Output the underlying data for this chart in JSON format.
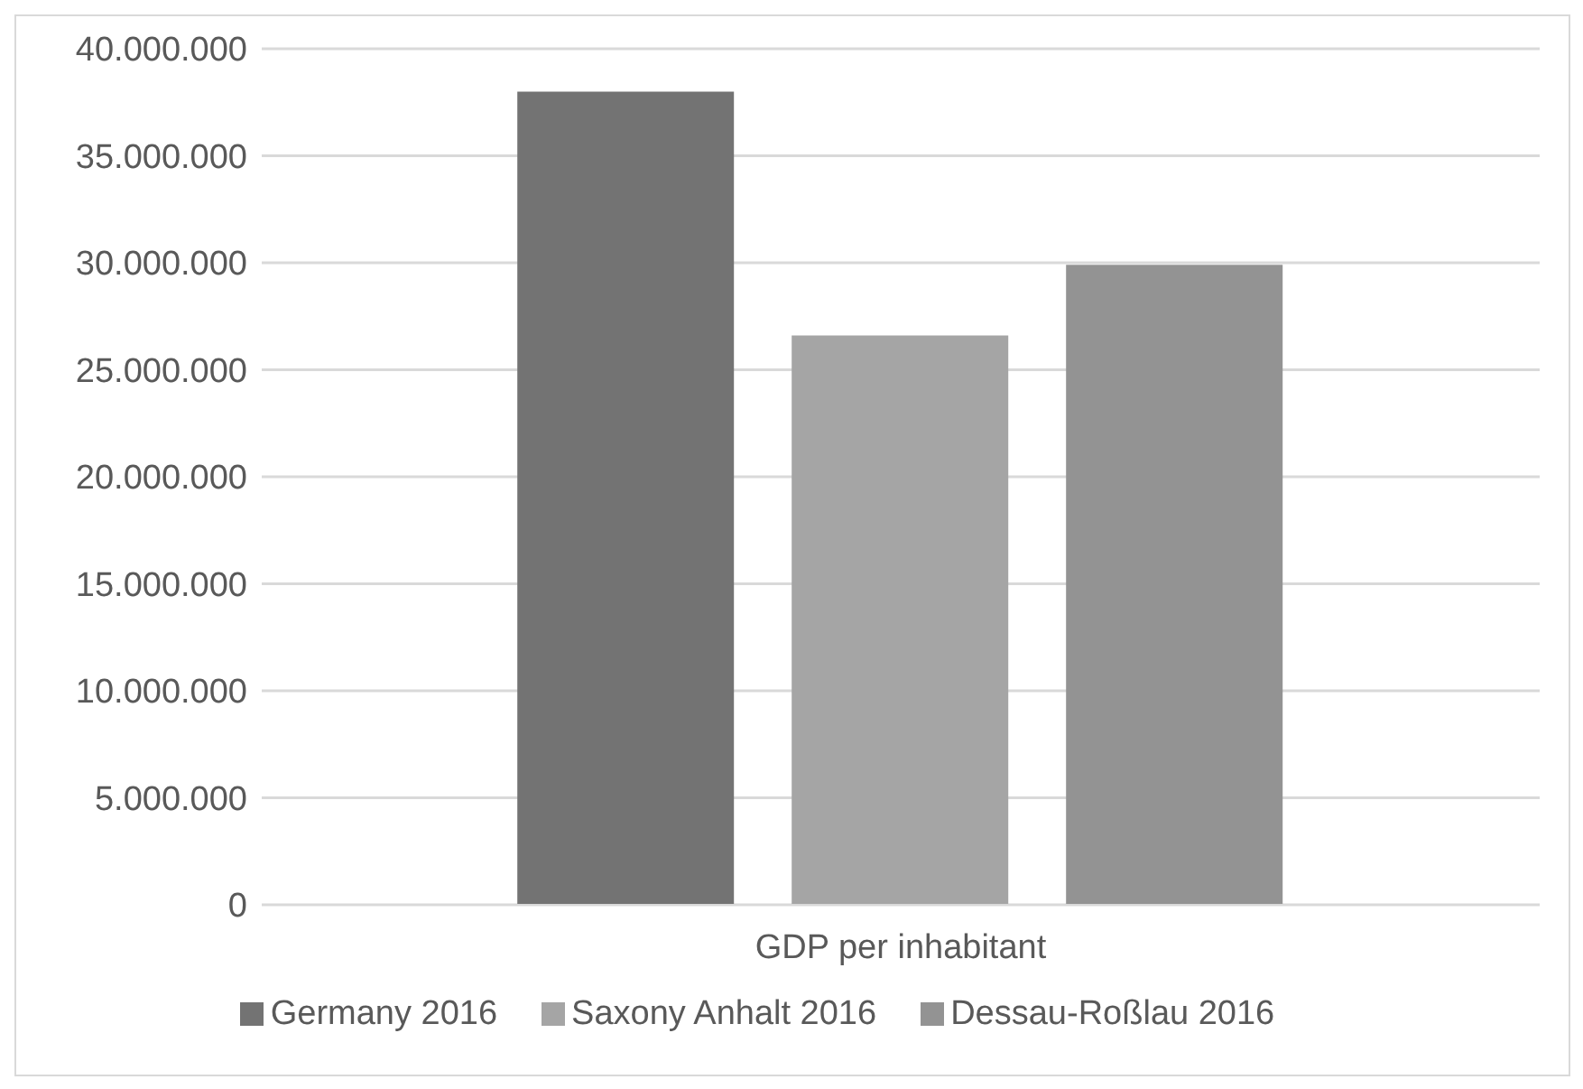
{
  "chart_data": {
    "type": "bar",
    "categories": [
      "GDP per inhabitant"
    ],
    "series": [
      {
        "name": "Germany 2016",
        "color": "#737373",
        "values": [
          38000000
        ]
      },
      {
        "name": "Saxony Anhalt 2016",
        "color": "#a5a5a5",
        "values": [
          26600000
        ]
      },
      {
        "name": "Dessau-Roßlau 2016",
        "color": "#939393",
        "values": [
          29900000
        ]
      }
    ],
    "ylim": [
      0,
      40000000
    ],
    "yticks": [
      {
        "value": 0,
        "label": "0"
      },
      {
        "value": 5000000,
        "label": "5.000.000"
      },
      {
        "value": 10000000,
        "label": "10.000.000"
      },
      {
        "value": 15000000,
        "label": "15.000.000"
      },
      {
        "value": 20000000,
        "label": "20.000.000"
      },
      {
        "value": 25000000,
        "label": "25.000.000"
      },
      {
        "value": 30000000,
        "label": "30.000.000"
      },
      {
        "value": 35000000,
        "label": "35.000.000"
      },
      {
        "value": 40000000,
        "label": "40.000.000"
      }
    ],
    "grid": "y",
    "legend": "bottom"
  }
}
